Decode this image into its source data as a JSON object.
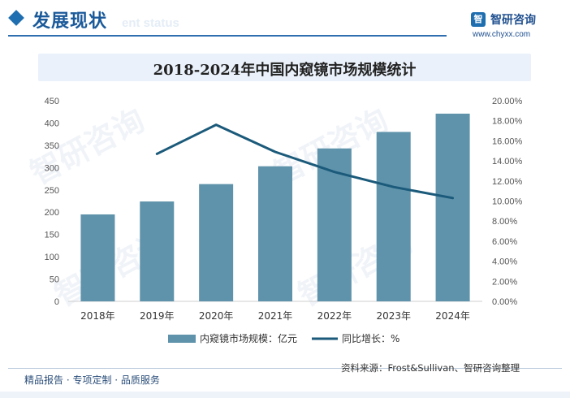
{
  "header": {
    "section_title": "发展现状",
    "watermark_text": "ent status",
    "brand_name": "智研咨询",
    "brand_url": "www.chyxx.com"
  },
  "chart_data": {
    "type": "bar+line",
    "title": "2018-2024年中国内窥镜市场规模统计",
    "categories": [
      "2018年",
      "2019年",
      "2020年",
      "2021年",
      "2022年",
      "2023年",
      "2024年"
    ],
    "series": [
      {
        "name": "内窥镜市场规模：亿元",
        "type": "bar",
        "axis": "left",
        "color": "#5f93ab",
        "values": [
          195,
          224,
          263,
          303,
          343,
          380,
          421
        ]
      },
      {
        "name": "同比增长：%",
        "type": "line",
        "axis": "right",
        "color": "#1b5a7a",
        "values": [
          null,
          14.7,
          17.6,
          14.9,
          12.9,
          11.4,
          10.3
        ]
      }
    ],
    "y_left": {
      "min": 0,
      "max": 450,
      "step": 50,
      "ticks": [
        "0",
        "50",
        "100",
        "150",
        "200",
        "250",
        "300",
        "350",
        "400",
        "450"
      ]
    },
    "y_right": {
      "min": 0,
      "max": 20,
      "step": 2,
      "ticks": [
        "0.00%",
        "2.00%",
        "4.00%",
        "6.00%",
        "8.00%",
        "10.00%",
        "12.00%",
        "14.00%",
        "16.00%",
        "18.00%",
        "20.00%"
      ]
    },
    "grid": false,
    "legend_position": "bottom"
  },
  "footer": {
    "tagline": "精品报告 · 专项定制 · 品质服务",
    "source": "资料来源：Frost&Sullivan、智研咨询整理"
  },
  "colors": {
    "accent": "#1f6fb0",
    "bar": "#5f93ab",
    "line": "#1b5a7a",
    "title_bar_bg": "#eaf1fa"
  }
}
